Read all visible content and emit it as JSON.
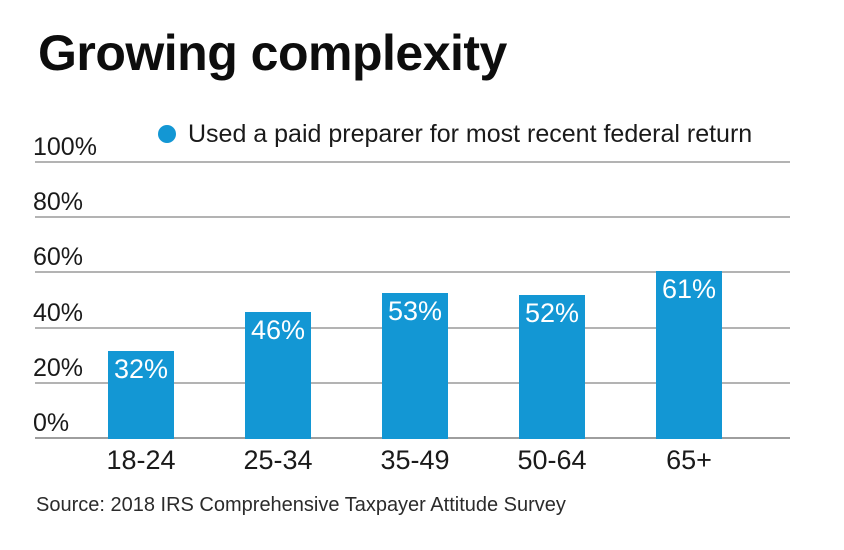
{
  "header": {
    "title": "Growing complexity"
  },
  "legend": {
    "label": "Used a paid preparer for most recent federal return"
  },
  "chart_data": {
    "type": "bar",
    "title": "Growing complexity",
    "categories": [
      "18-24",
      "25-34",
      "35-49",
      "50-64",
      "65+"
    ],
    "values": [
      32,
      46,
      53,
      52,
      61
    ],
    "value_labels": [
      "32%",
      "46%",
      "53%",
      "52%",
      "61%"
    ],
    "series_name": "Used a paid preparer for most recent federal return",
    "xlabel": "",
    "ylabel": "",
    "ylim": [
      0,
      100
    ],
    "yticks": [
      0,
      20,
      40,
      60,
      80,
      100
    ],
    "ytick_labels": [
      "0%",
      "20%",
      "40%",
      "60%",
      "80%",
      "100%"
    ],
    "grid": true,
    "legend_position": "top"
  },
  "source": {
    "text": "Source: 2018 IRS Comprehensive Taxpayer Attitude Survey"
  },
  "colors": {
    "bar": "#1397d4",
    "legend_dot": "#1397d4",
    "gridline": "#b3b3b3",
    "baseline": "#9e9e9e",
    "bar_label": "#ffffff",
    "text": "#1a1a1a"
  }
}
